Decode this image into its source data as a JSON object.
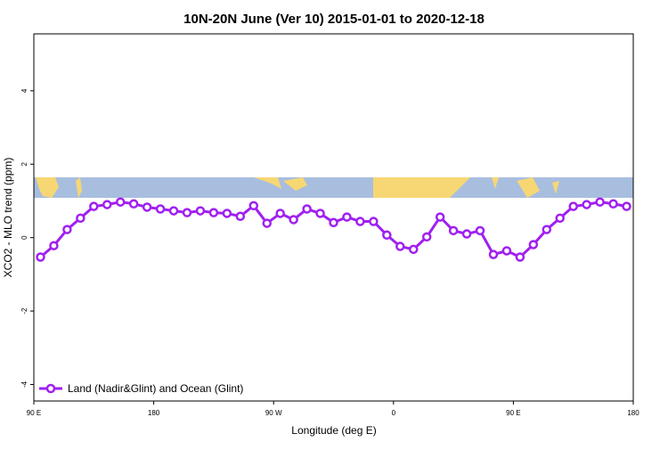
{
  "chart_data": {
    "type": "line",
    "title": "10N-20N June (Ver 10)   2015-01-01 to 2020-12-18",
    "x_label": "Longitude (deg E)",
    "y_label": "XCO2 - MLO trend (ppm)",
    "x": [
      95,
      105,
      115,
      125,
      135,
      145,
      155,
      165,
      175,
      185,
      195,
      205,
      215,
      225,
      235,
      245,
      255,
      265,
      275,
      285,
      295,
      305,
      315,
      325,
      335,
      345,
      355,
      365,
      375,
      385,
      395,
      405,
      415,
      425,
      435,
      445,
      455,
      465,
      475,
      485,
      495,
      505,
      515,
      525,
      535
    ],
    "series": [
      {
        "name": "Land (Nadir&Glint) and Ocean (Glint)",
        "color": "#a020f0",
        "values": [
          -0.53,
          -0.22,
          0.22,
          0.53,
          0.85,
          0.9,
          0.97,
          0.92,
          0.83,
          0.78,
          0.73,
          0.68,
          0.73,
          0.68,
          0.66,
          0.58,
          0.87,
          0.39,
          0.66,
          0.49,
          0.78,
          0.66,
          0.41,
          0.56,
          0.44,
          0.44,
          0.07,
          -0.24,
          -0.32,
          0.02,
          0.56,
          0.19,
          0.1,
          0.19,
          -0.46,
          -0.36,
          -0.53,
          -0.19,
          0.22,
          0.53,
          0.85,
          0.9,
          0.97,
          0.92,
          0.85
        ]
      }
    ],
    "xlim": [
      90,
      540
    ],
    "xticks": [
      {
        "value": 90,
        "label": "90 E"
      },
      180,
      {
        "value": 270,
        "label": "90 W"
      },
      {
        "value": 360,
        "label": "0"
      },
      {
        "value": 450,
        "label": "90 E"
      },
      {
        "value": 540,
        "label": "180"
      }
    ],
    "ylim": [
      -4.45,
      5.55
    ],
    "yticks": [
      -4,
      -2,
      0,
      2,
      4
    ],
    "legend": "bottom-left"
  }
}
